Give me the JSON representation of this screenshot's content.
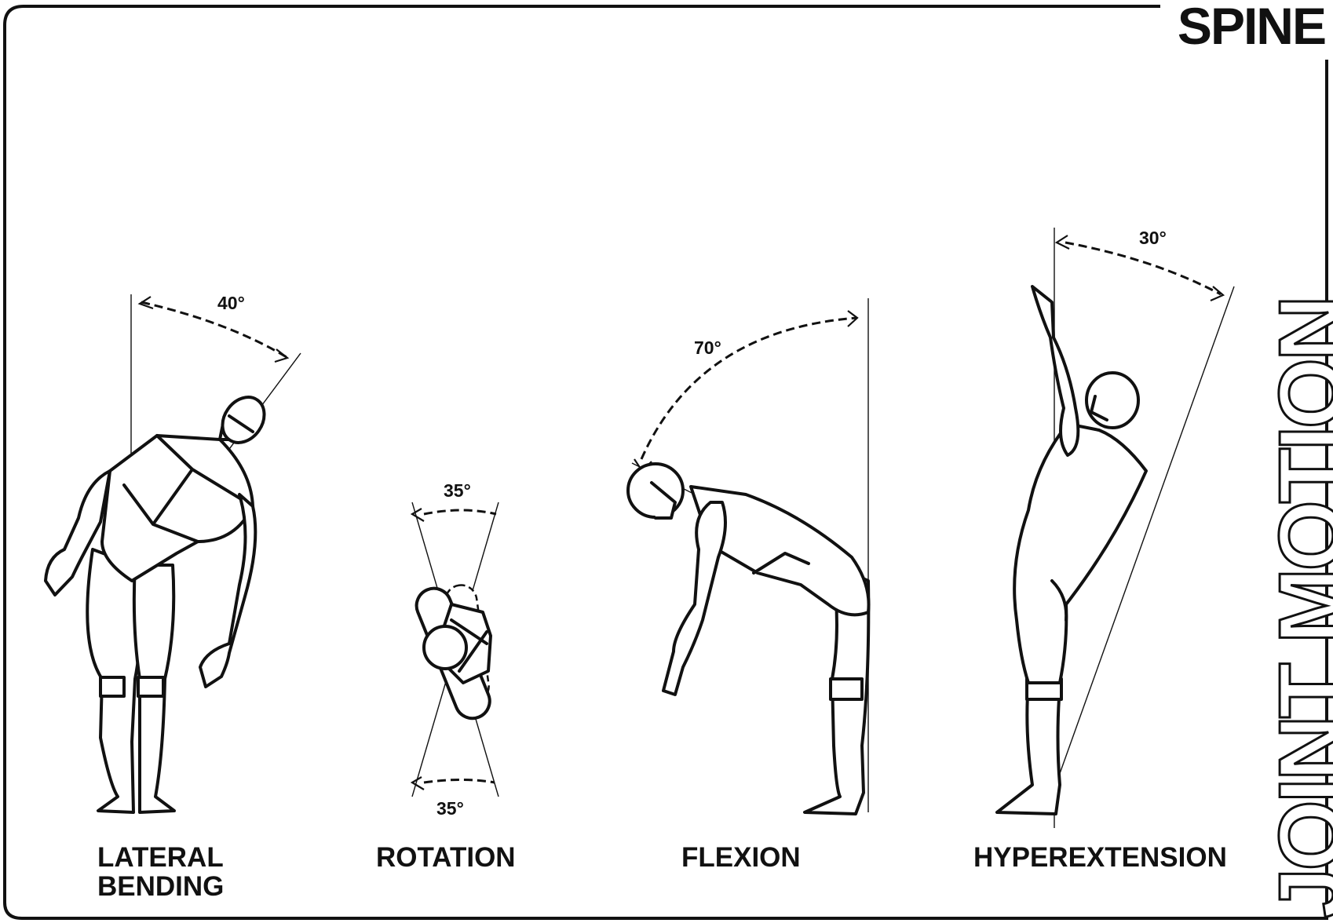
{
  "title": "SPINE",
  "side_title": "JOINT MOTION",
  "motions": [
    {
      "label_line1": "LATERAL",
      "label_line2": "BENDING",
      "angle": "40°"
    },
    {
      "label": "ROTATION",
      "angle_top": "35°",
      "angle_bottom": "35°"
    },
    {
      "label": "FLEXION",
      "angle": "70°"
    },
    {
      "label": "HYPEREXTENSION",
      "angle": "30°"
    }
  ]
}
